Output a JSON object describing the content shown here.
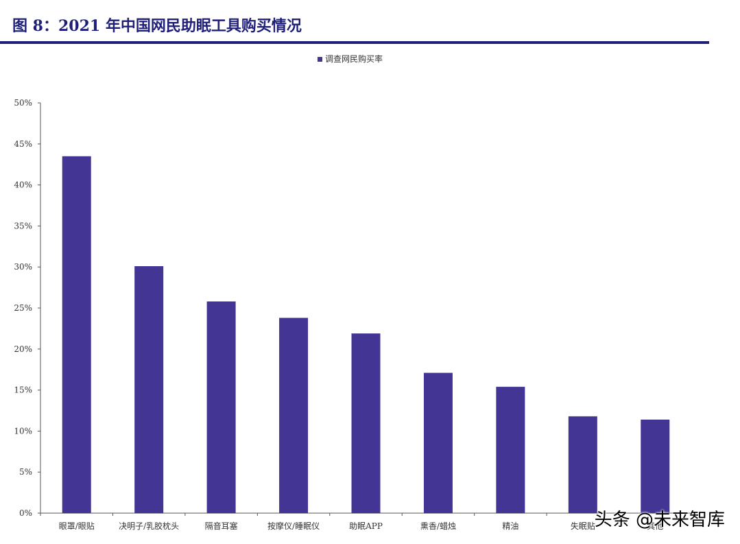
{
  "figure_title": "图 8：2021 年中国网民助眠工具购买情况",
  "watermark": "头条 @未来智库",
  "colors": {
    "bar": "#433594",
    "title": "#1f1f7a",
    "axis": "#555555"
  },
  "chart_data": {
    "type": "bar",
    "title": "",
    "xlabel": "",
    "ylabel": "",
    "categories": [
      "眼罩/眼贴",
      "决明子/乳胶枕头",
      "隔音耳塞",
      "按摩仪/睡眠仪",
      "助眠APP",
      "熏香/蜡烛",
      "精油",
      "失眠贴",
      "其他"
    ],
    "series": [
      {
        "name": "调查网民购买率",
        "values": [
          43.5,
          30.1,
          25.8,
          23.8,
          21.9,
          17.1,
          15.4,
          11.8,
          11.4
        ]
      }
    ],
    "ylim": [
      0,
      50
    ],
    "yticks": [
      "0%",
      "5%",
      "10%",
      "15%",
      "20%",
      "25%",
      "30%",
      "35%",
      "40%",
      "45%",
      "50%"
    ],
    "grid": false,
    "legend_position": "top-center"
  }
}
